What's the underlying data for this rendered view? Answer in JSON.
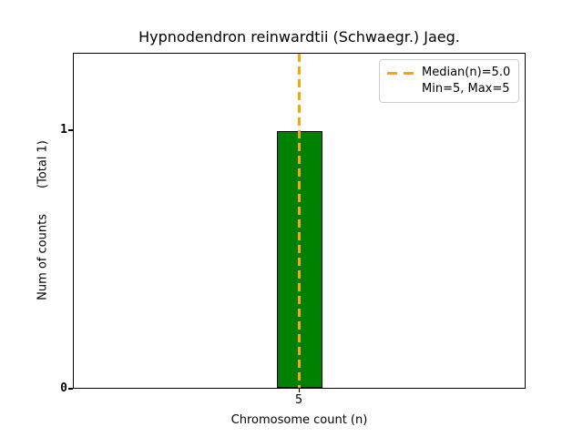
{
  "figure": {
    "title": "Hypnodendron reinwardtii (Schwaegr.) Jaeg.",
    "xlabel": "Chromosome count (n)",
    "ylabel_primary": "Num of counts",
    "ylabel_secondary": "(Total 1)",
    "x_tick_labels": [
      "5"
    ],
    "y_tick_labels": [
      "0",
      "1"
    ],
    "legend": {
      "entries": [
        {
          "label": "Median(n)=5.0",
          "marker": "orange-dashed-line"
        },
        {
          "label": "Min=5, Max=5",
          "marker": "none"
        }
      ],
      "position": "upper right"
    },
    "colors": {
      "bar_fill": "#008000",
      "bar_edge": "#000000",
      "median_line": "#FFA500",
      "legend_border": "#cccccc",
      "axes_edge": "#000000",
      "background": "#ffffff"
    }
  },
  "chart_data": {
    "type": "bar",
    "title": "Hypnodendron reinwardtii (Schwaegr.) Jaeg.",
    "xlabel": "Chromosome count (n)",
    "ylabel": "Num of counts (Total 1)",
    "categories": [
      5
    ],
    "values": [
      1
    ],
    "y_tick_values": [
      0,
      1
    ],
    "x_tick_values": [
      5
    ],
    "ylim": [
      0,
      1.3
    ],
    "annotations": {
      "median_n": 5.0,
      "min_n": 5,
      "max_n": 5,
      "total_counts": 1
    },
    "legend_position": "upper right",
    "grid": false,
    "series_color": "#008000",
    "median_line_color": "#FFA500",
    "median_line_style": "dashed"
  }
}
